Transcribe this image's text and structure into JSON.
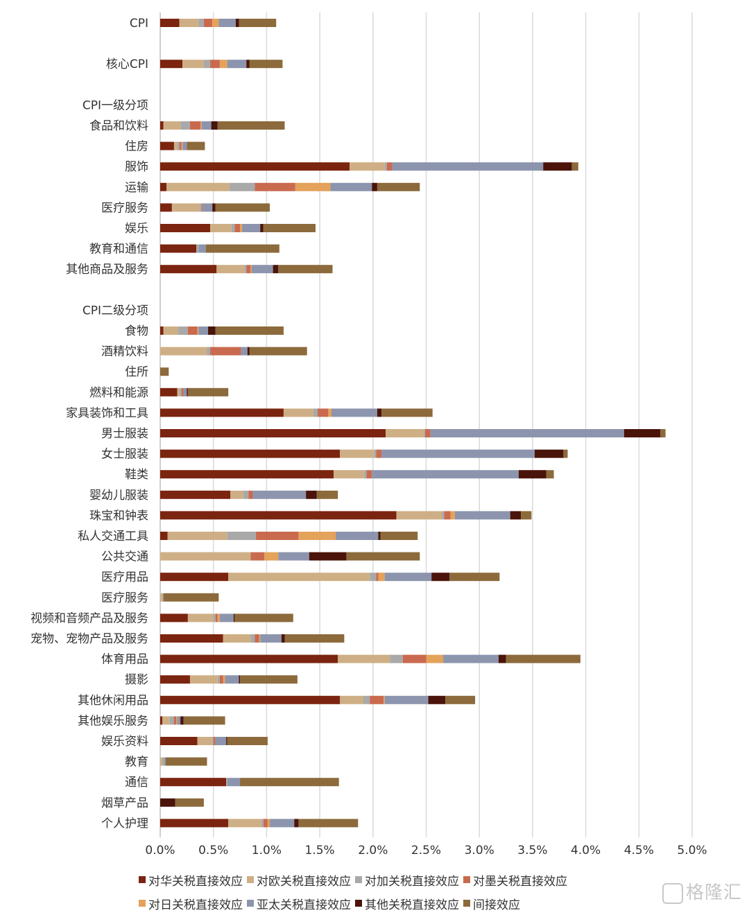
{
  "chart_data": {
    "type": "bar",
    "orientation": "horizontal",
    "stacked": true,
    "xlim": [
      0,
      5
    ],
    "x_unit": "%",
    "x_ticks": [
      "0.0%",
      "0.5%",
      "1.0%",
      "1.5%",
      "2.0%",
      "2.5%",
      "3.0%",
      "3.5%",
      "4.0%",
      "4.5%",
      "5.0%"
    ],
    "grid": "vertical",
    "legend_position": "bottom",
    "colors": [
      "#7b2410",
      "#ceaf85",
      "#a9a9a9",
      "#c96a4f",
      "#e4a25a",
      "#8c95ad",
      "#4a140a",
      "#8c6a3b"
    ],
    "series_names": [
      "对华关税直接效应",
      "对欧关税直接效应",
      "对加关税直接效应",
      "对墨关税直接效应",
      "对日关税直接效应",
      "亚太关税直接效应",
      "其他关税直接效应",
      "间接效应"
    ],
    "rows": [
      {
        "label": "CPI",
        "values": [
          0.18,
          0.18,
          0.05,
          0.08,
          0.06,
          0.16,
          0.03,
          0.35
        ]
      },
      {
        "label": "",
        "values": null
      },
      {
        "label": "核心CPI",
        "values": [
          0.21,
          0.2,
          0.06,
          0.09,
          0.07,
          0.18,
          0.03,
          0.31
        ]
      },
      {
        "label": "",
        "values": null
      },
      {
        "label": "CPI一级分项",
        "values": null
      },
      {
        "label": "食品和饮料",
        "values": [
          0.03,
          0.16,
          0.09,
          0.1,
          0.01,
          0.09,
          0.06,
          0.63
        ]
      },
      {
        "label": "住房",
        "values": [
          0.13,
          0.03,
          0.02,
          0.02,
          0.01,
          0.04,
          0.0,
          0.17
        ]
      },
      {
        "label": "服饰",
        "values": [
          1.78,
          0.33,
          0.02,
          0.05,
          0.0,
          1.42,
          0.27,
          0.06
        ]
      },
      {
        "label": "运输",
        "values": [
          0.06,
          0.59,
          0.24,
          0.38,
          0.33,
          0.39,
          0.05,
          0.4
        ]
      },
      {
        "label": "医疗服务",
        "values": [
          0.11,
          0.26,
          0.02,
          0.01,
          0.0,
          0.09,
          0.03,
          0.51
        ]
      },
      {
        "label": "娱乐",
        "values": [
          0.47,
          0.2,
          0.03,
          0.05,
          0.02,
          0.17,
          0.03,
          0.49
        ]
      },
      {
        "label": "教育和通信",
        "values": [
          0.34,
          0.0,
          0.02,
          0.0,
          0.0,
          0.07,
          0.0,
          0.69
        ]
      },
      {
        "label": "其他商品及服务",
        "values": [
          0.53,
          0.26,
          0.02,
          0.04,
          0.01,
          0.2,
          0.05,
          0.51
        ]
      },
      {
        "label": "",
        "values": null
      },
      {
        "label": "CPI二级分项",
        "values": null
      },
      {
        "label": "食物",
        "values": [
          0.03,
          0.14,
          0.09,
          0.09,
          0.01,
          0.09,
          0.07,
          0.64
        ]
      },
      {
        "label": "酒精饮料",
        "values": [
          0.0,
          0.44,
          0.03,
          0.29,
          0.0,
          0.06,
          0.02,
          0.54
        ]
      },
      {
        "label": "住所",
        "values": [
          0.0,
          0.0,
          0.0,
          0.0,
          0.0,
          0.0,
          0.0,
          0.08
        ]
      },
      {
        "label": "燃料和能源",
        "values": [
          0.16,
          0.02,
          0.02,
          0.02,
          0.0,
          0.03,
          0.01,
          0.38
        ]
      },
      {
        "label": "家具装饰和工具",
        "values": [
          1.16,
          0.28,
          0.04,
          0.1,
          0.03,
          0.43,
          0.04,
          0.48
        ]
      },
      {
        "label": "男士服装",
        "values": [
          2.12,
          0.36,
          0.01,
          0.05,
          0.0,
          1.82,
          0.34,
          0.05
        ]
      },
      {
        "label": "女士服装",
        "values": [
          1.69,
          0.32,
          0.02,
          0.05,
          0.0,
          1.44,
          0.27,
          0.04
        ]
      },
      {
        "label": "鞋类",
        "values": [
          1.63,
          0.29,
          0.02,
          0.05,
          0.0,
          1.38,
          0.26,
          0.07
        ]
      },
      {
        "label": "婴幼儿服装",
        "values": [
          0.66,
          0.12,
          0.05,
          0.04,
          0.0,
          0.5,
          0.1,
          0.2
        ]
      },
      {
        "label": "珠宝和钟表",
        "values": [
          2.22,
          0.43,
          0.02,
          0.06,
          0.04,
          0.52,
          0.1,
          0.1
        ]
      },
      {
        "label": "私人交通工具",
        "values": [
          0.07,
          0.56,
          0.27,
          0.4,
          0.35,
          0.4,
          0.02,
          0.35
        ]
      },
      {
        "label": "公共交通",
        "values": [
          0.0,
          0.85,
          0.0,
          0.13,
          0.13,
          0.29,
          0.35,
          0.69
        ]
      },
      {
        "label": "医疗用品",
        "values": [
          0.64,
          1.33,
          0.06,
          0.02,
          0.06,
          0.44,
          0.17,
          0.47
        ]
      },
      {
        "label": "医疗服务",
        "values": [
          0.0,
          0.02,
          0.01,
          0.0,
          0.0,
          0.0,
          0.0,
          0.52
        ]
      },
      {
        "label": "视频和音频产品及服务",
        "values": [
          0.26,
          0.24,
          0.02,
          0.02,
          0.02,
          0.13,
          0.01,
          0.55
        ]
      },
      {
        "label": "宠物、宠物产品及服务",
        "values": [
          0.59,
          0.26,
          0.04,
          0.04,
          0.01,
          0.2,
          0.03,
          0.56
        ]
      },
      {
        "label": "体育用品",
        "values": [
          1.67,
          0.49,
          0.12,
          0.22,
          0.16,
          0.52,
          0.07,
          0.7
        ]
      },
      {
        "label": "摄影",
        "values": [
          0.28,
          0.26,
          0.02,
          0.03,
          0.02,
          0.13,
          0.01,
          0.54
        ]
      },
      {
        "label": "其他休闲用品",
        "values": [
          1.69,
          0.22,
          0.06,
          0.13,
          0.01,
          0.41,
          0.16,
          0.28
        ]
      },
      {
        "label": "其他娱乐服务",
        "values": [
          0.02,
          0.07,
          0.04,
          0.02,
          0.01,
          0.03,
          0.03,
          0.39
        ]
      },
      {
        "label": "娱乐资料",
        "values": [
          0.35,
          0.14,
          0.01,
          0.02,
          0.0,
          0.1,
          0.01,
          0.38
        ]
      },
      {
        "label": "教育",
        "values": [
          0.0,
          0.02,
          0.02,
          0.0,
          0.0,
          0.01,
          0.0,
          0.39
        ]
      },
      {
        "label": "通信",
        "values": [
          0.62,
          0.0,
          0.01,
          0.0,
          0.0,
          0.12,
          0.0,
          0.93
        ]
      },
      {
        "label": "烟草产品",
        "values": [
          0.0,
          0.0,
          0.0,
          0.0,
          0.0,
          0.0,
          0.14,
          0.27
        ]
      },
      {
        "label": "个人护理",
        "values": [
          0.64,
          0.31,
          0.02,
          0.04,
          0.02,
          0.23,
          0.04,
          0.56
        ]
      }
    ]
  },
  "watermark": {
    "text": "格隆汇"
  }
}
